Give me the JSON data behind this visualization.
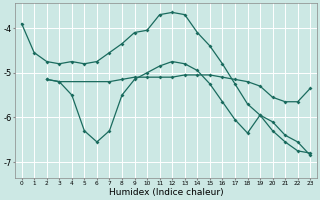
{
  "xlabel": "Humidex (Indice chaleur)",
  "bg_color": "#cce8e4",
  "grid_color": "#ffffff",
  "line_color": "#1a6b5e",
  "xlim": [
    -0.5,
    23.5
  ],
  "ylim": [
    -7.35,
    -3.45
  ],
  "yticks": [
    -7,
    -6,
    -5,
    -4
  ],
  "xticks": [
    0,
    1,
    2,
    3,
    4,
    5,
    6,
    7,
    8,
    9,
    10,
    11,
    12,
    13,
    14,
    15,
    16,
    17,
    18,
    19,
    20,
    21,
    22,
    23
  ],
  "line1_x": [
    0,
    1,
    2,
    3,
    4,
    5,
    6,
    7,
    8,
    9,
    10,
    11,
    12,
    13,
    14,
    15,
    16,
    17,
    18,
    19,
    20,
    21,
    22,
    23
  ],
  "line1_y": [
    -3.9,
    -4.55,
    -4.75,
    -4.8,
    -4.75,
    -4.8,
    -4.75,
    -4.55,
    -4.35,
    -4.1,
    -4.05,
    -3.7,
    -3.65,
    -3.7,
    -4.1,
    -4.4,
    -4.8,
    -5.25,
    -5.7,
    -5.95,
    -6.3,
    -6.55,
    -6.75,
    -6.8
  ],
  "line2_x": [
    2,
    3,
    7,
    8,
    9,
    10,
    11,
    12,
    13,
    14,
    15,
    16,
    17,
    18,
    19,
    20,
    21,
    22,
    23
  ],
  "line2_y": [
    -5.15,
    -5.2,
    -5.2,
    -5.15,
    -5.1,
    -5.1,
    -5.1,
    -5.1,
    -5.05,
    -5.05,
    -5.05,
    -5.1,
    -5.15,
    -5.2,
    -5.3,
    -5.55,
    -5.65,
    -5.65,
    -5.35
  ],
  "line3_x": [
    2,
    3,
    4,
    5,
    6,
    7,
    8,
    9,
    10,
    11,
    12,
    13,
    14,
    15,
    16,
    17,
    18,
    19,
    20,
    21,
    22,
    23
  ],
  "line3_y": [
    -5.15,
    -5.2,
    -5.5,
    -6.3,
    -6.55,
    -6.3,
    -5.5,
    -5.15,
    -5.0,
    -4.85,
    -4.75,
    -4.8,
    -4.95,
    -5.25,
    -5.65,
    -6.05,
    -6.35,
    -5.95,
    -6.1,
    -6.4,
    -6.55,
    -6.85
  ]
}
